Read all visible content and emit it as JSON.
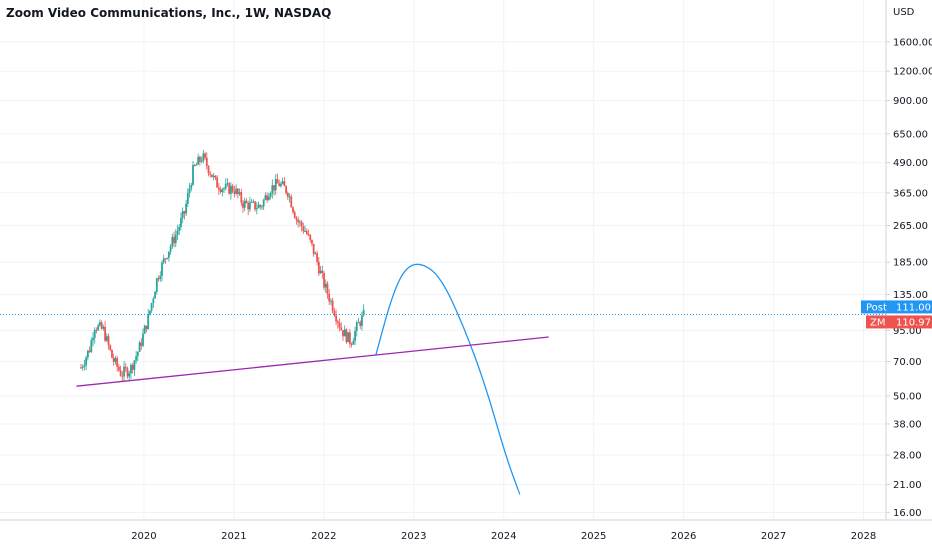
{
  "header": {
    "title": "Zoom Video Communications, Inc., 1W, NASDAQ"
  },
  "price_axis": {
    "unit": "USD",
    "ticks": [
      "1600.00",
      "1200.00",
      "900.00",
      "650.00",
      "490.00",
      "365.00",
      "265.00",
      "185.00",
      "135.00",
      "95.00",
      "70.00",
      "50.00",
      "38.00",
      "28.00",
      "21.00",
      "16.00"
    ]
  },
  "time_axis": {
    "ticks": [
      "2020",
      "2021",
      "2022",
      "2023",
      "2024",
      "2025",
      "2026",
      "2027",
      "2028"
    ]
  },
  "badges": {
    "post_label": "Post",
    "post_value": "111.00",
    "symbol_label": "ZM",
    "symbol_value": "110.97"
  },
  "colors": {
    "up": "#26a69a",
    "down": "#ef5350",
    "projection": "#2196f3",
    "support": "#9c27b0",
    "post_badge": "#2196f3",
    "symbol_badge": "#ef5350",
    "grid": "#f0f3fa"
  },
  "chart_data": {
    "type": "line",
    "title": "Zoom Video Communications, Inc., 1W, NASDAQ",
    "y_scale": "log",
    "y_unit": "USD",
    "ylim": [
      14,
      2000
    ],
    "xlim": [
      2018.4,
      2028.25
    ],
    "grid": true,
    "series": [
      {
        "style": "candlestick-approx",
        "x": [
          2019.3,
          2019.4,
          2019.45,
          2019.55,
          2019.65,
          2019.75,
          2019.85,
          2019.95,
          2020.05,
          2020.15,
          2020.25,
          2020.35,
          2020.45,
          2020.55,
          2020.65,
          2020.75,
          2020.8,
          2020.9,
          2021.0,
          2021.1,
          2021.2,
          2021.3,
          2021.4,
          2021.5,
          2021.6,
          2021.7,
          2021.8,
          2021.9,
          2022.0,
          2022.1,
          2022.2,
          2022.3,
          2022.38,
          2022.45
        ],
        "values": [
          66,
          80,
          100,
          95,
          72,
          62,
          65,
          80,
          108,
          160,
          200,
          240,
          300,
          460,
          520,
          440,
          400,
          380,
          380,
          330,
          320,
          320,
          380,
          400,
          370,
          280,
          250,
          200,
          150,
          120,
          95,
          85,
          100,
          111
        ]
      },
      {
        "style": "projection-arc",
        "x": [
          2022.58,
          2022.75,
          2022.9,
          2023.08,
          2023.3,
          2023.55,
          2023.8,
          2024.02,
          2024.18
        ],
        "values": [
          75,
          130,
          175,
          185,
          160,
          100,
          55,
          28,
          19
        ]
      },
      {
        "style": "support-trendline",
        "x": [
          2019.25,
          2024.5
        ],
        "values": [
          55,
          89
        ]
      }
    ],
    "last_price": 111.0,
    "last_close": 110.97
  }
}
